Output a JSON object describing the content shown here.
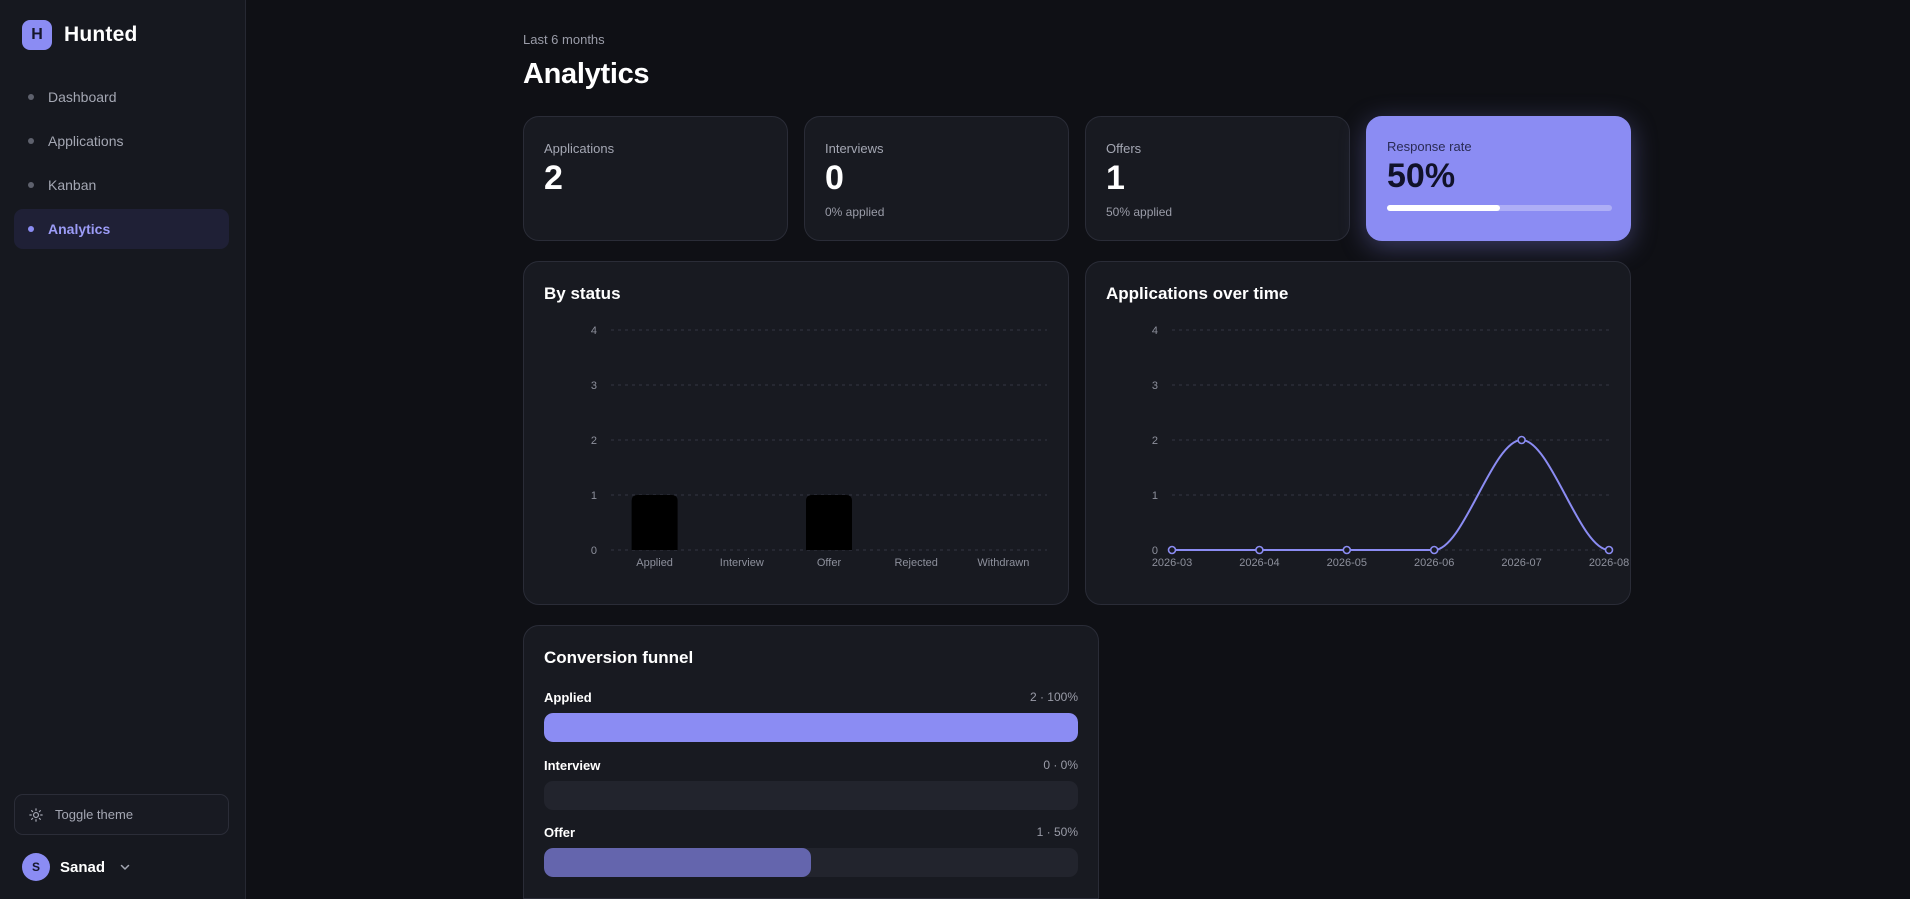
{
  "brand": {
    "logo_letter": "H",
    "name": "Hunted"
  },
  "nav": [
    {
      "label": "Dashboard",
      "active": false
    },
    {
      "label": "Applications",
      "active": false
    },
    {
      "label": "Kanban",
      "active": false
    },
    {
      "label": "Analytics",
      "active": true
    }
  ],
  "footer": {
    "toggle_theme": "Toggle theme",
    "user_initial": "S",
    "user_name": "Sanad",
    "theme_icon": "sun-icon",
    "menu_icon": "chevron-down-icon"
  },
  "header": {
    "subtitle": "Last 6 months",
    "title": "Analytics"
  },
  "stats": {
    "applications": {
      "label": "Applications",
      "value": "2"
    },
    "interviews": {
      "label": "Interviews",
      "value": "0",
      "sub": "0% applied"
    },
    "offers": {
      "label": "Offers",
      "value": "1",
      "sub": "50% applied"
    },
    "response_rate": {
      "label": "Response rate",
      "value": "50%",
      "fraction": 0.5
    }
  },
  "colors": {
    "accent": "#8b8cf3",
    "offer_bar": "#6465ad",
    "bar": "#000000"
  },
  "charts": {
    "by_status_title": "By status",
    "over_time_title": "Applications over time"
  },
  "chart_data": [
    {
      "type": "bar",
      "title": "By status",
      "categories": [
        "Applied",
        "Interview",
        "Offer",
        "Rejected",
        "Withdrawn"
      ],
      "values": [
        1,
        0,
        1,
        0,
        0
      ],
      "yticks": [
        "0",
        "1",
        "2",
        "3",
        "4"
      ],
      "ylim": [
        0,
        4
      ],
      "grid": true
    },
    {
      "type": "line",
      "title": "Applications over time",
      "x": [
        "2026-03",
        "2026-04",
        "2026-05",
        "2026-06",
        "2026-07",
        "2026-08"
      ],
      "values": [
        0,
        0,
        0,
        0,
        2,
        0
      ],
      "yticks": [
        "0",
        "1",
        "2",
        "3",
        "4"
      ],
      "ylim": [
        0,
        4
      ],
      "grid": true
    }
  ],
  "funnel": {
    "title": "Conversion funnel",
    "rows": [
      {
        "name": "Applied",
        "value_text": "2 · 100%",
        "fraction": 1.0
      },
      {
        "name": "Interview",
        "value_text": "0 · 0%",
        "fraction": 0.0
      },
      {
        "name": "Offer",
        "value_text": "1 · 50%",
        "fraction": 0.5
      }
    ]
  }
}
